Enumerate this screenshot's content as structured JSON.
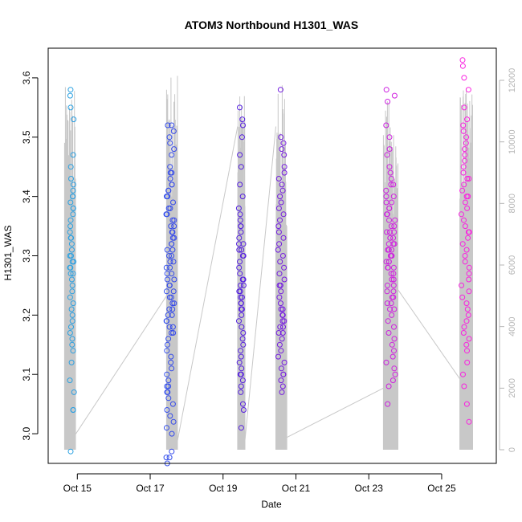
{
  "chart_data": {
    "type": "scatter",
    "title": "ATOM3 Northbound H1301_WAS",
    "xlabel": "Date",
    "ylabel": "H1301_WAS",
    "x_ticks": [
      "Oct 15",
      "Oct 17",
      "Oct 19",
      "Oct 21",
      "Oct 23",
      "Oct 25"
    ],
    "xlim": [
      "Oct 14.2",
      "Oct 26.5"
    ],
    "ylim": [
      2.95,
      3.65
    ],
    "y_ticks": [
      "3.0",
      "3.1",
      "3.2",
      "3.3",
      "3.4",
      "3.5",
      "3.6"
    ],
    "y2_ticks": [
      "0",
      "2000",
      "4000",
      "6000",
      "8000",
      "10000",
      "12000"
    ],
    "y2lim": [
      0,
      12000
    ],
    "y2_color": "#b5b5b5",
    "point_color_gradient": [
      "#2aa8e0",
      "#2a5ef0",
      "#4a20e0",
      "#8a18e0",
      "#d020e0",
      "#ff20e0"
    ],
    "series": [
      {
        "type": "scatter",
        "groups": [
          {
            "x_center": 14.85,
            "spread": 0.12,
            "y_values": [
              3.58,
              3.57,
              3.55,
              3.53,
              3.47,
              3.45,
              3.43,
              3.42,
              3.41,
              3.4,
              3.4,
              3.39,
              3.38,
              3.38,
              3.37,
              3.36,
              3.35,
              3.34,
              3.33,
              3.33,
              3.32,
              3.31,
              3.3,
              3.3,
              3.29,
              3.29,
              3.28,
              3.28,
              3.27,
              3.27,
              3.26,
              3.25,
              3.24,
              3.23,
              3.22,
              3.21,
              3.2,
              3.19,
              3.18,
              3.17,
              3.16,
              3.15,
              3.14,
              3.12,
              3.09,
              3.07,
              3.04,
              3.04,
              2.97
            ]
          },
          {
            "x_center": 17.55,
            "spread": 0.22,
            "y_values": [
              3.52,
              3.52,
              3.51,
              3.5,
              3.49,
              3.48,
              3.47,
              3.45,
              3.44,
              3.44,
              3.43,
              3.42,
              3.42,
              3.41,
              3.41,
              3.4,
              3.4,
              3.39,
              3.38,
              3.38,
              3.37,
              3.37,
              3.36,
              3.36,
              3.35,
              3.35,
              3.34,
              3.34,
              3.33,
              3.33,
              3.32,
              3.32,
              3.31,
              3.31,
              3.3,
              3.3,
              3.29,
              3.29,
              3.28,
              3.28,
              3.27,
              3.27,
              3.26,
              3.26,
              3.25,
              3.25,
              3.24,
              3.24,
              3.23,
              3.23,
              3.22,
              3.22,
              3.21,
              3.21,
              3.2,
              3.2,
              3.19,
              3.19,
              3.18,
              3.18,
              3.17,
              3.17,
              3.16,
              3.15,
              3.14,
              3.13,
              3.12,
              3.11,
              3.1,
              3.09,
              3.08,
              3.08,
              3.07,
              3.07,
              3.06,
              3.05,
              3.04,
              3.03,
              3.02,
              3.01,
              3.0,
              2.97,
              2.96,
              2.96,
              2.95
            ]
          },
          {
            "x_center": 19.5,
            "spread": 0.14,
            "y_values": [
              3.55,
              3.53,
              3.52,
              3.5,
              3.47,
              3.45,
              3.42,
              3.4,
              3.38,
              3.37,
              3.36,
              3.35,
              3.35,
              3.34,
              3.33,
              3.32,
              3.32,
              3.31,
              3.31,
              3.3,
              3.3,
              3.29,
              3.28,
              3.27,
              3.26,
              3.26,
              3.25,
              3.25,
              3.24,
              3.24,
              3.23,
              3.23,
              3.22,
              3.22,
              3.21,
              3.21,
              3.2,
              3.19,
              3.18,
              3.17,
              3.16,
              3.15,
              3.14,
              3.13,
              3.12,
              3.11,
              3.1,
              3.1,
              3.09,
              3.08,
              3.07,
              3.05,
              3.04,
              3.01
            ]
          },
          {
            "x_center": 20.6,
            "spread": 0.18,
            "y_values": [
              3.58,
              3.5,
              3.49,
              3.48,
              3.47,
              3.45,
              3.44,
              3.43,
              3.42,
              3.41,
              3.4,
              3.39,
              3.38,
              3.37,
              3.36,
              3.35,
              3.34,
              3.33,
              3.32,
              3.31,
              3.3,
              3.29,
              3.28,
              3.27,
              3.26,
              3.25,
              3.25,
              3.24,
              3.23,
              3.22,
              3.21,
              3.21,
              3.2,
              3.2,
              3.19,
              3.19,
              3.18,
              3.18,
              3.17,
              3.17,
              3.16,
              3.15,
              3.14,
              3.13,
              3.12,
              3.11,
              3.1,
              3.1,
              3.09,
              3.08,
              3.07
            ]
          },
          {
            "x_center": 23.6,
            "spread": 0.25,
            "y_values": [
              3.58,
              3.57,
              3.56,
              3.52,
              3.5,
              3.48,
              3.47,
              3.45,
              3.44,
              3.43,
              3.42,
              3.42,
              3.41,
              3.4,
              3.4,
              3.39,
              3.39,
              3.38,
              3.38,
              3.37,
              3.37,
              3.36,
              3.36,
              3.35,
              3.35,
              3.34,
              3.34,
              3.34,
              3.33,
              3.33,
              3.33,
              3.32,
              3.32,
              3.32,
              3.31,
              3.31,
              3.31,
              3.3,
              3.3,
              3.3,
              3.29,
              3.29,
              3.29,
              3.28,
              3.28,
              3.28,
              3.27,
              3.27,
              3.26,
              3.26,
              3.25,
              3.25,
              3.24,
              3.24,
              3.23,
              3.23,
              3.22,
              3.22,
              3.21,
              3.21,
              3.2,
              3.19,
              3.18,
              3.17,
              3.16,
              3.15,
              3.14,
              3.13,
              3.12,
              3.11,
              3.1,
              3.09,
              3.08,
              3.05
            ]
          },
          {
            "x_center": 25.65,
            "spread": 0.22,
            "y_values": [
              3.63,
              3.62,
              3.6,
              3.58,
              3.55,
              3.53,
              3.52,
              3.51,
              3.5,
              3.49,
              3.48,
              3.47,
              3.46,
              3.45,
              3.44,
              3.43,
              3.43,
              3.42,
              3.41,
              3.4,
              3.4,
              3.39,
              3.38,
              3.37,
              3.36,
              3.35,
              3.34,
              3.34,
              3.33,
              3.32,
              3.31,
              3.3,
              3.29,
              3.28,
              3.27,
              3.26,
              3.25,
              3.24,
              3.23,
              3.22,
              3.21,
              3.2,
              3.19,
              3.18,
              3.17,
              3.16,
              3.15,
              3.14,
              3.12,
              3.1,
              3.08,
              3.05,
              3.02
            ]
          }
        ]
      },
      {
        "type": "line",
        "axis": "right",
        "color": "#c8c8c8",
        "groups": [
          {
            "x_start": 14.65,
            "x_end": 14.95,
            "max_alt": 11800
          },
          {
            "x_start": 17.45,
            "x_end": 17.75,
            "max_alt": 12400
          },
          {
            "x_start": 19.4,
            "x_end": 19.6,
            "max_alt": 11500
          },
          {
            "x_start": 20.45,
            "x_end": 20.75,
            "max_alt": 12000
          },
          {
            "x_start": 23.4,
            "x_end": 23.8,
            "max_alt": 11400
          },
          {
            "x_start": 25.5,
            "x_end": 25.85,
            "max_alt": 11800
          }
        ],
        "connectors": [
          {
            "x1": 14.95,
            "y1": 500,
            "x2": 17.45,
            "y2": 5000
          },
          {
            "x1": 17.75,
            "y1": 300,
            "x2": 19.4,
            "y2": 10500
          },
          {
            "x1": 19.6,
            "y1": 300,
            "x2": 20.45,
            "y2": 10500
          },
          {
            "x1": 20.75,
            "y1": 400,
            "x2": 23.4,
            "y2": 2000
          },
          {
            "x1": 23.8,
            "y1": 5200,
            "x2": 25.5,
            "y2": 2300
          }
        ]
      }
    ]
  }
}
